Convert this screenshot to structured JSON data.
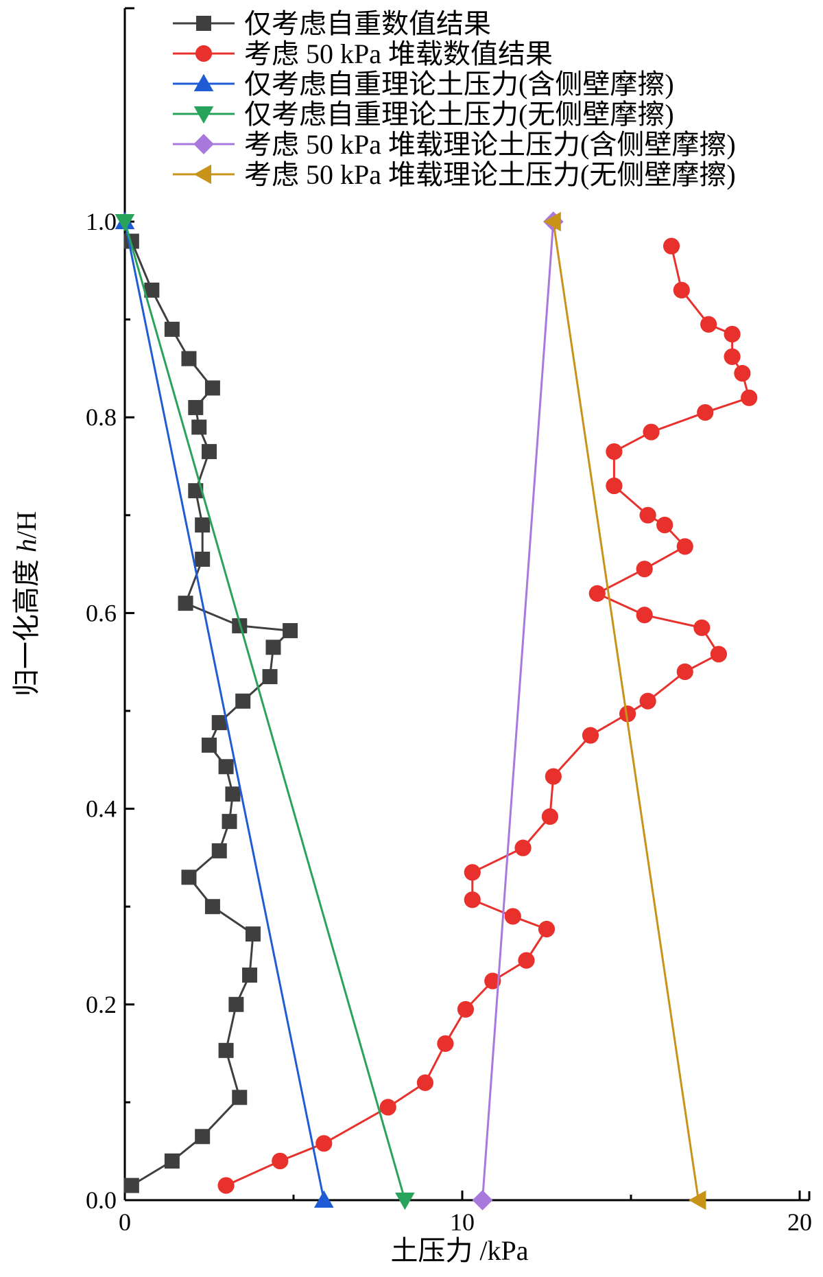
{
  "chart_data": {
    "type": "line",
    "title": "",
    "xlabel": "土压力 /kPa",
    "ylabel": "归一化高度 h/H",
    "ylabel_parts": {
      "prefix": "归一化高度 ",
      "italic": "h",
      "suffix": "/H"
    },
    "xlim": [
      0,
      20
    ],
    "ylim": [
      0,
      1.0
    ],
    "xticks": [
      0,
      10,
      20
    ],
    "xtick_labels": [
      "0",
      "10",
      "20"
    ],
    "yticks": [
      0.0,
      0.2,
      0.4,
      0.6,
      0.8,
      1.0
    ],
    "ytick_labels": [
      "0.0",
      "0.2",
      "0.4",
      "0.6",
      "0.8",
      "1.0"
    ],
    "grid": false,
    "legend_position": "top-left",
    "series": [
      {
        "name": "仅考虑自重数值结果",
        "color": "#3f3f3f",
        "marker": "square",
        "points": [
          [
            0.2,
            0.98
          ],
          [
            0.8,
            0.93
          ],
          [
            1.4,
            0.89
          ],
          [
            1.9,
            0.86
          ],
          [
            2.6,
            0.83
          ],
          [
            2.1,
            0.81
          ],
          [
            2.2,
            0.79
          ],
          [
            2.5,
            0.765
          ],
          [
            2.1,
            0.725
          ],
          [
            2.3,
            0.69
          ],
          [
            2.3,
            0.655
          ],
          [
            1.8,
            0.61
          ],
          [
            3.4,
            0.587
          ],
          [
            4.9,
            0.582
          ],
          [
            4.4,
            0.565
          ],
          [
            4.3,
            0.535
          ],
          [
            3.5,
            0.51
          ],
          [
            2.8,
            0.488
          ],
          [
            2.5,
            0.465
          ],
          [
            3.0,
            0.443
          ],
          [
            3.2,
            0.415
          ],
          [
            3.1,
            0.387
          ],
          [
            2.8,
            0.357
          ],
          [
            1.9,
            0.33
          ],
          [
            2.6,
            0.3
          ],
          [
            3.8,
            0.272
          ],
          [
            3.7,
            0.23
          ],
          [
            3.3,
            0.2
          ],
          [
            3.0,
            0.153
          ],
          [
            3.4,
            0.105
          ],
          [
            2.3,
            0.065
          ],
          [
            1.4,
            0.04
          ],
          [
            0.2,
            0.015
          ]
        ]
      },
      {
        "name": "考虑 50 kPa 堆载数值结果",
        "color": "#e8312c",
        "marker": "circle",
        "points": [
          [
            16.2,
            0.975
          ],
          [
            16.5,
            0.93
          ],
          [
            17.3,
            0.895
          ],
          [
            18.0,
            0.885
          ],
          [
            18.0,
            0.862
          ],
          [
            18.3,
            0.845
          ],
          [
            18.5,
            0.82
          ],
          [
            17.2,
            0.805
          ],
          [
            15.6,
            0.785
          ],
          [
            14.5,
            0.765
          ],
          [
            14.5,
            0.73
          ],
          [
            15.5,
            0.7
          ],
          [
            16.0,
            0.69
          ],
          [
            16.6,
            0.668
          ],
          [
            15.4,
            0.645
          ],
          [
            14.0,
            0.62
          ],
          [
            15.4,
            0.598
          ],
          [
            17.1,
            0.585
          ],
          [
            17.6,
            0.558
          ],
          [
            16.6,
            0.54
          ],
          [
            15.5,
            0.51
          ],
          [
            14.9,
            0.497
          ],
          [
            13.8,
            0.475
          ],
          [
            12.7,
            0.433
          ],
          [
            12.6,
            0.392
          ],
          [
            11.8,
            0.36
          ],
          [
            10.3,
            0.335
          ],
          [
            10.3,
            0.307
          ],
          [
            11.5,
            0.29
          ],
          [
            12.5,
            0.277
          ],
          [
            11.9,
            0.245
          ],
          [
            10.9,
            0.224
          ],
          [
            10.1,
            0.195
          ],
          [
            9.5,
            0.16
          ],
          [
            8.9,
            0.12
          ],
          [
            7.8,
            0.095
          ],
          [
            5.9,
            0.058
          ],
          [
            4.6,
            0.04
          ],
          [
            3.0,
            0.015
          ]
        ]
      },
      {
        "name": "仅考虑自重理论土压力(含侧壁摩擦)",
        "color": "#1f5bd4",
        "marker": "triangle-up",
        "points": [
          [
            0.0,
            1.0
          ],
          [
            5.9,
            0.0
          ]
        ]
      },
      {
        "name": "仅考虑自重理论土压力(无侧壁摩擦)",
        "color": "#27a35c",
        "marker": "triangle-down",
        "points": [
          [
            0.0,
            1.0
          ],
          [
            8.3,
            0.0
          ]
        ]
      },
      {
        "name": "考虑 50 kPa 堆载理论土压力(含侧壁摩擦)",
        "color": "#a978dc",
        "marker": "diamond",
        "points": [
          [
            12.7,
            1.0
          ],
          [
            10.6,
            0.0
          ]
        ]
      },
      {
        "name": "考虑 50 kPa 堆载理论土压力(无侧壁摩擦)",
        "color": "#c79318",
        "marker": "triangle-left",
        "points": [
          [
            12.7,
            1.0
          ],
          [
            17.0,
            0.0
          ]
        ]
      }
    ]
  }
}
